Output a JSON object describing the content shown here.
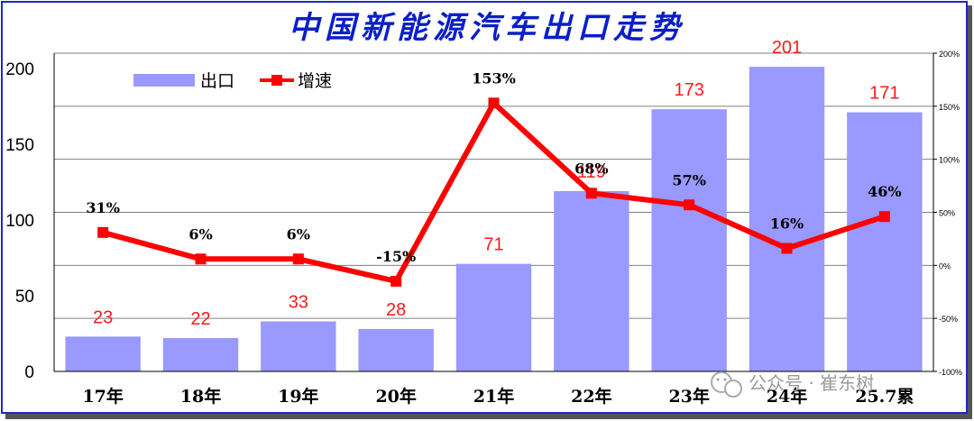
{
  "title": "中国新能源汽车出口走势",
  "colors": {
    "bar": "#9999ff",
    "line": "#ff0000",
    "bar_label": "#ff1a1a",
    "title": "#0a1fc8",
    "frame": "#1a2cc0"
  },
  "watermark": {
    "icon": "wechat-icon",
    "text": "公众号 · 崔东树"
  },
  "chart_data": {
    "type": "bar",
    "categories": [
      "17年",
      "18年",
      "19年",
      "20年",
      "21年",
      "22年",
      "23年",
      "24年",
      "25.7累"
    ],
    "series": [
      {
        "name": "出口",
        "type": "bar",
        "axis": "left",
        "values": [
          23,
          22,
          33,
          28,
          71,
          119,
          173,
          201,
          171
        ]
      },
      {
        "name": "增速",
        "type": "line",
        "axis": "right",
        "values": [
          31,
          6,
          6,
          -15,
          153,
          68,
          57,
          16,
          46
        ],
        "unit": "%"
      }
    ],
    "bar_labels": [
      "23",
      "22",
      "33",
      "28",
      "71",
      "119",
      "173",
      "201",
      "171"
    ],
    "line_labels": [
      "31%",
      "6%",
      "6%",
      "-15%",
      "153%",
      "68%",
      "57%",
      "16%",
      "46%"
    ],
    "left_axis": {
      "ylim": [
        0,
        210
      ],
      "ticks": [
        "0",
        "50",
        "100",
        "150",
        "200"
      ],
      "tick_values": [
        0,
        50,
        100,
        150,
        200
      ]
    },
    "right_axis": {
      "ylim": [
        -100,
        200
      ],
      "ticks": [
        "-100%",
        "-50%",
        "0%",
        "50%",
        "100%",
        "150%",
        "200%"
      ],
      "tick_values": [
        -100,
        -50,
        0,
        50,
        100,
        150,
        200
      ]
    },
    "legend": {
      "position": "top-left",
      "items": [
        "出口",
        "增速"
      ]
    },
    "grid": true
  }
}
